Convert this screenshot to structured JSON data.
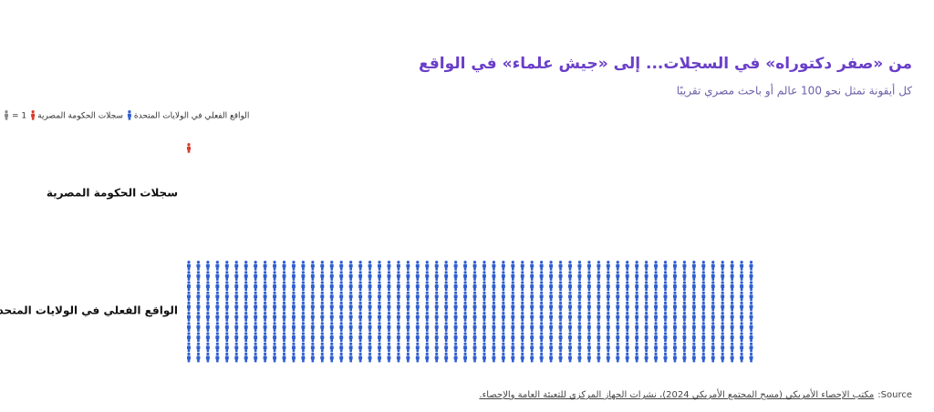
{
  "chart_data": {
    "type": "pictogram",
    "title": "من «صفر دكتوراه» في السجلات... إلى «جيش علماء» في الواقع",
    "subtitle": "كل أيقونة تمثل نحو 100 عالم أو باحث مصري تقريبًا",
    "legend_unit": "= 1",
    "unit_color": "#8a8a8a",
    "categories": [
      "سجلات الحكومة المصرية",
      "الواقع الفعلي في الولايات المتحدة"
    ],
    "values": [
      1,
      600
    ],
    "colors": [
      "#d93a2b",
      "#2f5fd0"
    ],
    "icons_per_column": 10,
    "source_label": "Source:",
    "source_text": "مكتب الإحصاء الأمريكي (مسح المجتمع الأمريكي 2024)، نشرات الجهاز المركزي للتعبئة العامة والإحصاء."
  }
}
